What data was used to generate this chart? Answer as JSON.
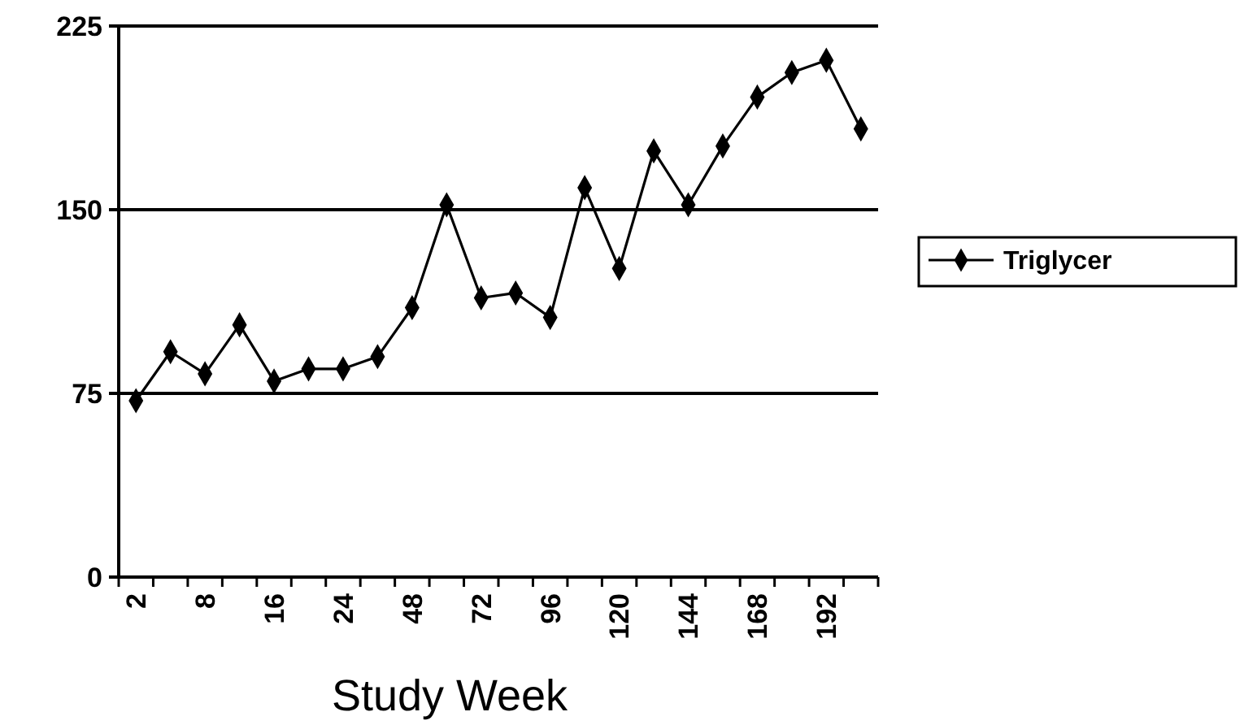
{
  "chart_data": {
    "type": "line",
    "xlabel": "Study Week",
    "categories": [
      "2",
      null,
      "8",
      null,
      "16",
      null,
      "24",
      null,
      "48",
      null,
      "72",
      null,
      "96",
      null,
      "120",
      null,
      "144",
      null,
      "168",
      null,
      "192",
      null
    ],
    "series": [
      {
        "name": "Triglycer",
        "color": "#000000",
        "values": [
          72,
          92,
          83,
          103,
          80,
          85,
          85,
          90,
          110,
          152,
          114,
          116,
          106,
          159,
          126,
          174,
          152,
          176,
          196,
          206,
          211,
          183
        ]
      }
    ],
    "ylim": [
      0,
      225
    ],
    "yticks": [
      0,
      75,
      150,
      225
    ],
    "grid": "y",
    "legend": "right",
    "marker": "diamond",
    "line_style": "solid"
  }
}
